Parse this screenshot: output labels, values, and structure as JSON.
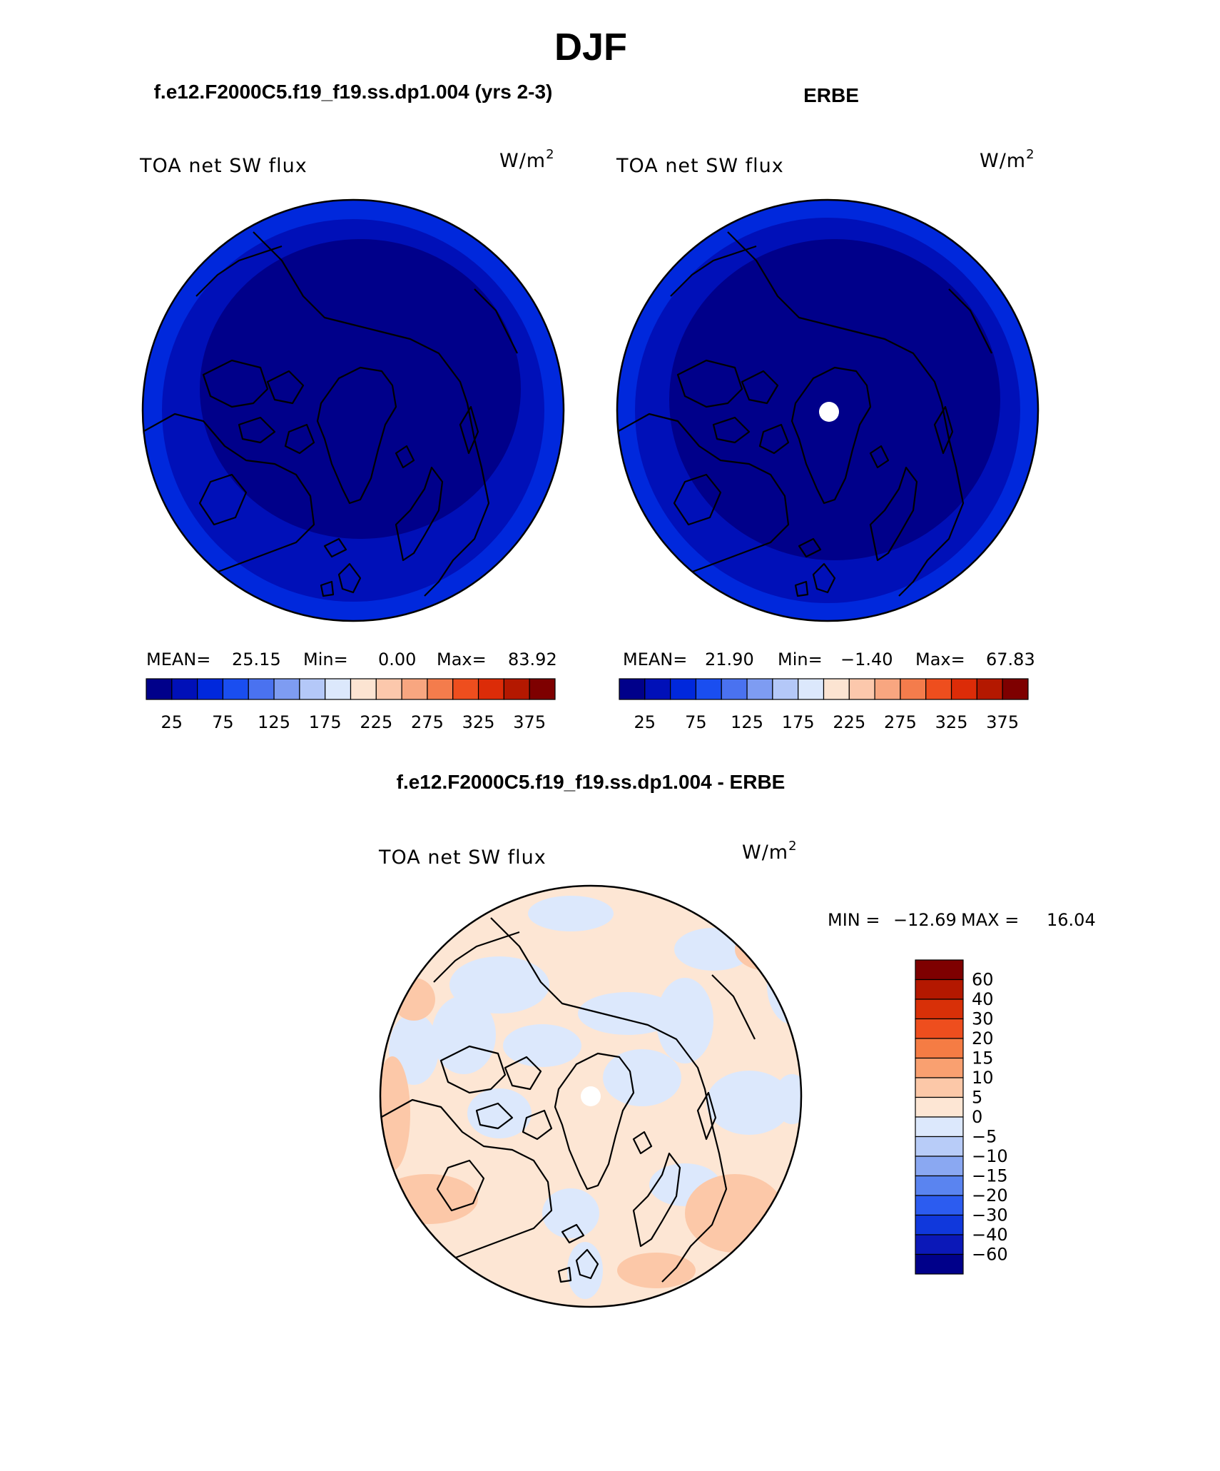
{
  "figure": {
    "season_title": "DJF",
    "colors": {
      "abs_scale": [
        "#00008a",
        "#0010b8",
        "#0028dc",
        "#1a4ef0",
        "#4a72f0",
        "#7e9cf2",
        "#b4c8f8",
        "#dce8fc",
        "#fce4d2",
        "#fcc8ac",
        "#f8a680",
        "#f47c4c",
        "#ee4e1e",
        "#dc2c08",
        "#b41800",
        "#7e0000"
      ],
      "diff_scale": [
        "#00008a",
        "#0b18b8",
        "#1038dc",
        "#2c5cf0",
        "#5a84f0",
        "#8aa8f2",
        "#b8ccf8",
        "#dce8fc",
        "#fde6d4",
        "#fcc8a8",
        "#f9a070",
        "#f57c44",
        "#ee4e1e",
        "#d83008",
        "#b41800",
        "#7e0000"
      ]
    }
  },
  "chart_data": [
    {
      "type": "heatmap",
      "projection": "north polar stereographic",
      "title": "f.e12.F2000C5.f19_f19.ss.dp1.004 (yrs 2-3)",
      "field_label": "TOA net SW flux",
      "units": "W/m",
      "units_power": "2",
      "stats": {
        "mean_label": "MEAN=",
        "mean": "25.15",
        "min_label": "Min=",
        "min": "0.00",
        "max_label": "Max=",
        "max": "83.92"
      },
      "colorbar": {
        "levels": [
          25,
          50,
          75,
          100,
          125,
          150,
          175,
          200,
          225,
          250,
          275,
          300,
          325,
          350,
          375
        ],
        "tick_labels": [
          "25",
          "75",
          "125",
          "175",
          "225",
          "275",
          "325",
          "375"
        ]
      },
      "field_bands": [
        {
          "level_index": 0,
          "description": "polar cap, values below 25"
        },
        {
          "level_index": 1,
          "description": "outer ring, 25 to 50"
        },
        {
          "level_index": 2,
          "description": "edge near 50 to 75"
        }
      ]
    },
    {
      "type": "heatmap",
      "projection": "north polar stereographic",
      "title": "ERBE",
      "field_label": "TOA net SW flux",
      "units": "W/m",
      "units_power": "2",
      "stats": {
        "mean_label": "MEAN=",
        "mean": "21.90",
        "min_label": "Min=",
        "min": "−1.40",
        "max_label": "Max=",
        "max": "67.83"
      },
      "colorbar": {
        "levels": [
          25,
          50,
          75,
          100,
          125,
          150,
          175,
          200,
          225,
          250,
          275,
          300,
          325,
          350,
          375
        ],
        "tick_labels": [
          "25",
          "75",
          "125",
          "175",
          "225",
          "275",
          "325",
          "375"
        ]
      },
      "missing_data": "pole"
    },
    {
      "type": "heatmap",
      "projection": "north polar stereographic",
      "title": "f.e12.F2000C5.f19_f19.ss.dp1.004 - ERBE",
      "field_label": "TOA net SW flux",
      "units": "W/m",
      "units_power": "2",
      "stats": {
        "min_label": "MIN =",
        "min": "−12.69",
        "max_label": "MAX =",
        "max": "16.04"
      },
      "colorbar": {
        "orientation": "vertical",
        "levels": [
          -60,
          -40,
          -30,
          -20,
          -15,
          -10,
          -5,
          0,
          5,
          10,
          15,
          20,
          30,
          40,
          60
        ],
        "tick_labels": [
          "60",
          "40",
          "30",
          "20",
          "15",
          "10",
          "5",
          "0",
          "−5",
          "−10",
          "−15",
          "−20",
          "−30",
          "−40",
          "−60"
        ]
      },
      "missing_data": "pole"
    }
  ]
}
